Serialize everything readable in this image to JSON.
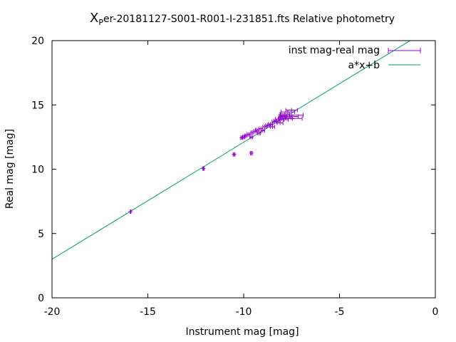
{
  "chart_data": {
    "type": "scatter",
    "title_prefix": "X",
    "title_sub": "P",
    "title_rest": "er-20181127-S001-R001-I-231851.fts Relative photometry",
    "xlabel": "Instrument mag [mag]",
    "ylabel": "Real mag [mag]",
    "xlim": [
      -20,
      0
    ],
    "ylim": [
      0,
      20
    ],
    "xticks": [
      -20,
      -15,
      -10,
      -5,
      0
    ],
    "yticks": [
      0,
      5,
      10,
      15,
      20
    ],
    "grid": false,
    "legend_position": "top-right",
    "series": [
      {
        "name": "inst mag-real mag",
        "color": "#9400d3",
        "style": "points-with-x-errorbars",
        "points": [
          {
            "x": -15.9,
            "y": 6.7,
            "xerr": 0.02
          },
          {
            "x": -12.1,
            "y": 10.05,
            "xerr": 0.03
          },
          {
            "x": -10.5,
            "y": 11.15,
            "xerr": 0.05
          },
          {
            "x": -9.6,
            "y": 11.25,
            "xerr": 0.05
          },
          {
            "x": -10.1,
            "y": 12.45,
            "xerr": 0.05
          },
          {
            "x": -10.0,
            "y": 12.5,
            "xerr": 0.06
          },
          {
            "x": -9.9,
            "y": 12.6,
            "xerr": 0.06
          },
          {
            "x": -9.75,
            "y": 12.7,
            "xerr": 0.07
          },
          {
            "x": -9.6,
            "y": 12.5,
            "xerr": 0.07
          },
          {
            "x": -9.55,
            "y": 12.85,
            "xerr": 0.07
          },
          {
            "x": -9.4,
            "y": 12.95,
            "xerr": 0.08
          },
          {
            "x": -9.3,
            "y": 13.05,
            "xerr": 0.08
          },
          {
            "x": -9.2,
            "y": 12.8,
            "xerr": 0.08
          },
          {
            "x": -9.1,
            "y": 13.15,
            "xerr": 0.09
          },
          {
            "x": -9.0,
            "y": 13.0,
            "xerr": 0.09
          },
          {
            "x": -8.9,
            "y": 13.3,
            "xerr": 0.1
          },
          {
            "x": -8.75,
            "y": 13.4,
            "xerr": 0.1
          },
          {
            "x": -8.6,
            "y": 13.5,
            "xerr": 0.11
          },
          {
            "x": -8.5,
            "y": 13.3,
            "xerr": 0.11
          },
          {
            "x": -8.4,
            "y": 13.7,
            "xerr": 0.12
          },
          {
            "x": -8.3,
            "y": 13.75,
            "xerr": 0.13
          },
          {
            "x": -8.2,
            "y": 13.9,
            "xerr": 0.14
          },
          {
            "x": -8.1,
            "y": 13.6,
            "xerr": 0.15
          },
          {
            "x": -8.0,
            "y": 14.0,
            "xerr": 0.17
          },
          {
            "x": -7.95,
            "y": 14.15,
            "xerr": 0.2
          },
          {
            "x": -7.9,
            "y": 13.85,
            "xerr": 0.22
          },
          {
            "x": -7.85,
            "y": 14.3,
            "xerr": 0.25
          },
          {
            "x": -7.8,
            "y": 14.0,
            "xerr": 0.28
          },
          {
            "x": -7.7,
            "y": 14.45,
            "xerr": 0.35
          },
          {
            "x": -7.6,
            "y": 14.1,
            "xerr": 0.45
          },
          {
            "x": -7.5,
            "y": 14.6,
            "xerr": 0.3
          },
          {
            "x": -7.5,
            "y": 14.2,
            "xerr": 0.6
          },
          {
            "x": -7.45,
            "y": 13.95,
            "xerr": 0.5
          }
        ]
      },
      {
        "name": "a*x+b",
        "color": "#009e73",
        "style": "line",
        "slope": 0.91,
        "intercept": 21.2
      }
    ]
  }
}
